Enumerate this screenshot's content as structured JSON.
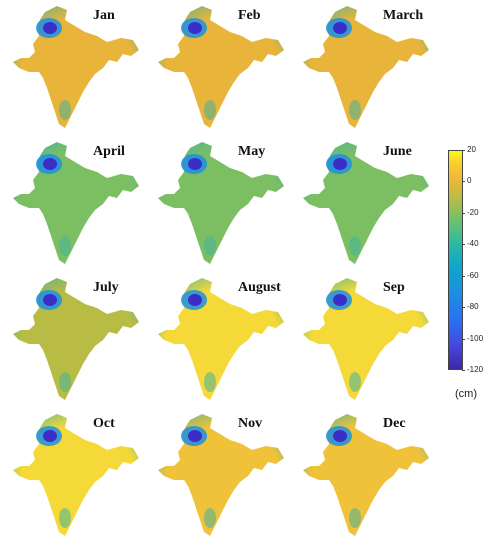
{
  "panels": [
    {
      "title": "Jan",
      "pattern": "dry"
    },
    {
      "title": "Feb",
      "pattern": "dry"
    },
    {
      "title": "March",
      "pattern": "dry"
    },
    {
      "title": "April",
      "pattern": "mid"
    },
    {
      "title": "May",
      "pattern": "mid"
    },
    {
      "title": "June",
      "pattern": "mid"
    },
    {
      "title": "July",
      "pattern": "low"
    },
    {
      "title": "August",
      "pattern": "wet"
    },
    {
      "title": "Sep",
      "pattern": "wet"
    },
    {
      "title": "Oct",
      "pattern": "wet"
    },
    {
      "title": "Nov",
      "pattern": "dry2"
    },
    {
      "title": "Dec",
      "pattern": "dry2"
    }
  ],
  "colorbar": {
    "min": -120,
    "max": 20,
    "ticks": [
      "20",
      "0",
      "-20",
      "-40",
      "-60",
      "-80",
      "-100",
      "-120"
    ],
    "unit": "(cm)",
    "colormap": [
      "#3e26a8",
      "#4745d8",
      "#2b6ff4",
      "#1c8fe3",
      "#0fa8c8",
      "#2dbba1",
      "#6dc16e",
      "#b8bc45",
      "#f1b937",
      "#fbd02d",
      "#f9fb15"
    ]
  },
  "colors": {
    "wet": "#f5d938",
    "dry": "#e8b43a",
    "mid": "#7cbf63",
    "low": "#b8bc45",
    "dry2": "#efc23a",
    "hotspot": "#3b2ec8",
    "ring": "#1c8fe3",
    "coast": "#45b39a"
  }
}
